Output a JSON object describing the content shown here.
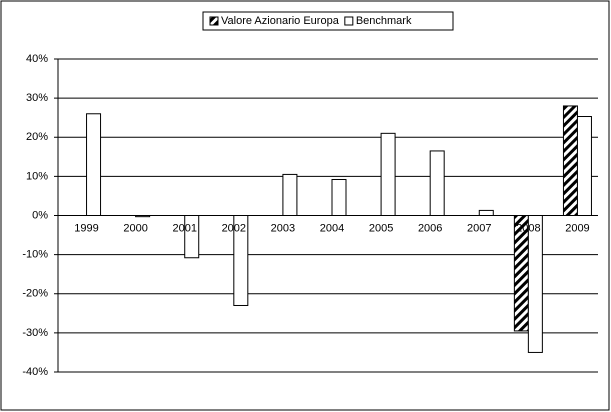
{
  "chart_data": {
    "type": "bar",
    "categories": [
      "1999",
      "2000",
      "2001",
      "2002",
      "2003",
      "2004",
      "2005",
      "2006",
      "2007",
      "2008",
      "2009"
    ],
    "series": [
      {
        "name": "Valore Azionario Europa",
        "color": "hatch",
        "values": [
          null,
          null,
          null,
          null,
          null,
          null,
          null,
          null,
          null,
          -29.5,
          28
        ]
      },
      {
        "name": "Benchmark",
        "color": "#ffffff",
        "values": [
          26,
          -0.3,
          -10.8,
          -23,
          10.5,
          9.2,
          21,
          16.5,
          1.3,
          -35,
          25.3
        ]
      }
    ],
    "ylim": [
      -40,
      40
    ],
    "yticks": [
      {
        "value": -40,
        "label": "-40%"
      },
      {
        "value": -30,
        "label": "-30%"
      },
      {
        "value": -20,
        "label": "-20%"
      },
      {
        "value": -10,
        "label": "-10%"
      },
      {
        "value": 0,
        "label": "0%"
      },
      {
        "value": 10,
        "label": "10%"
      },
      {
        "value": 20,
        "label": "20%"
      },
      {
        "value": 30,
        "label": "30%"
      },
      {
        "value": 40,
        "label": "40%"
      }
    ],
    "grid": true,
    "legend": "top"
  }
}
